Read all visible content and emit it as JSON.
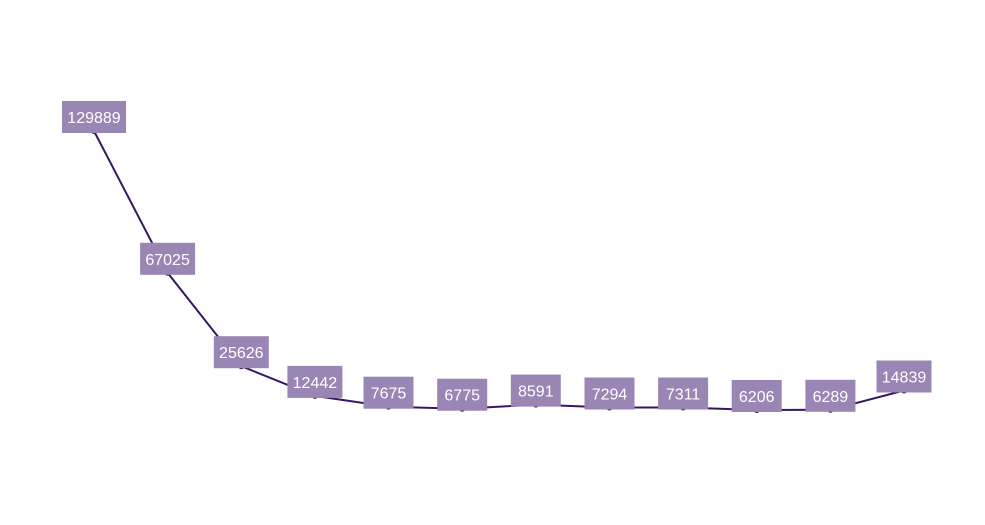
{
  "chart_data": {
    "type": "line",
    "title": "",
    "xlabel": "",
    "ylabel": "",
    "grid": false,
    "legend": "none",
    "show_axes": false,
    "colors": {
      "line": "#36185e",
      "label_bg": "#9a86b4",
      "label_text": "#ffffff"
    },
    "series": [
      {
        "values": [
          129889,
          67025,
          25626,
          12442,
          7675,
          6775,
          8591,
          7294,
          7311,
          6206,
          6289,
          14839
        ],
        "labels": [
          "129889",
          "67025",
          "25626",
          "12442",
          "7675",
          "6775",
          "8591",
          "7294",
          "7311",
          "6206",
          "6289",
          "14839"
        ]
      }
    ]
  }
}
